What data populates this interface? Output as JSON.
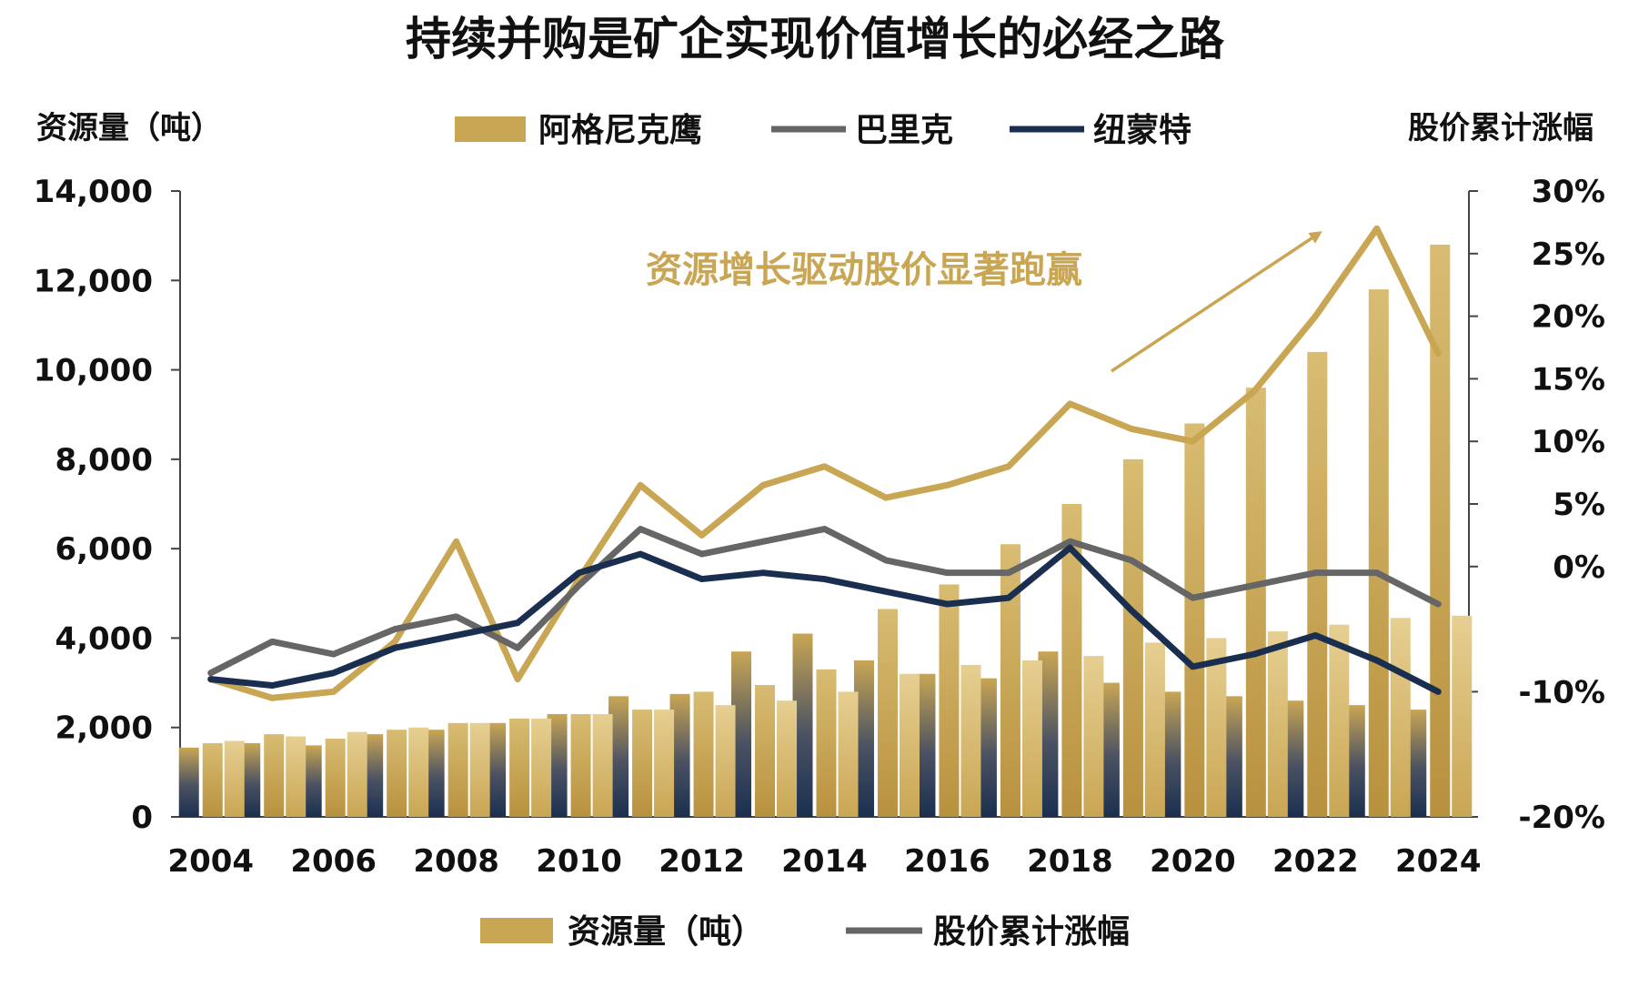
{
  "chart_data": {
    "type": "bar",
    "title": "持续并购是矿企实现价值增长的必经之路",
    "ylabel": "资源量（吨）",
    "y2label": "股价累计涨幅",
    "ylim": [
      0,
      14000
    ],
    "y2lim": [
      -20,
      30
    ],
    "y_ticks": [
      "0",
      "2,000",
      "4,000",
      "6,000",
      "8,000",
      "10,000",
      "12,000",
      "14,000"
    ],
    "y2_ticks": [
      "-20%",
      "-10%",
      "0%",
      "5%",
      "10%",
      "15%",
      "20%",
      "25%",
      "30%"
    ],
    "x": [
      2004,
      2005,
      2006,
      2007,
      2008,
      2009,
      2010,
      2011,
      2012,
      2013,
      2014,
      2015,
      2016,
      2017,
      2018,
      2019,
      2020,
      2021,
      2022,
      2023,
      2024
    ],
    "x_tick_labels": [
      "2004",
      "2006",
      "2008",
      "2010",
      "2012",
      "2014",
      "2016",
      "2018",
      "2020",
      "2022",
      "2024"
    ],
    "bar_series": [
      {
        "role": "dark",
        "values": [
          1550,
          1650,
          1600,
          1850,
          1950,
          2100,
          2300,
          2700,
          2750,
          3700,
          4100,
          3500,
          3200,
          3100,
          3700,
          3000,
          2800,
          2700,
          2600,
          2500,
          2400
        ]
      },
      {
        "role": "gold",
        "values": [
          1650,
          1850,
          1750,
          1950,
          2100,
          2200,
          2300,
          2400,
          2800,
          2950,
          3300,
          4650,
          5200,
          6100,
          7000,
          8000,
          8800,
          9600,
          10400,
          11800,
          12800
        ]
      },
      {
        "role": "gold-side",
        "values": [
          1700,
          1800,
          1900,
          2000,
          2100,
          2200,
          2300,
          2400,
          2500,
          2600,
          2800,
          3200,
          3400,
          3500,
          3600,
          3900,
          4000,
          4150,
          4300,
          4450,
          4500
        ]
      }
    ],
    "line_series": [
      {
        "name": "阿格尼克鹰",
        "color": "#C9A654",
        "values": [
          -9,
          -10.5,
          -10,
          -6,
          2,
          -9,
          -1,
          6.5,
          2.5,
          6.5,
          8,
          5.5,
          6.5,
          8,
          13,
          11,
          10,
          14,
          20,
          27,
          17
        ]
      },
      {
        "name": "巴里克",
        "color": "#666666",
        "values": [
          -8.5,
          -6,
          -7,
          -5,
          -4,
          -6.5,
          -1.5,
          3,
          1,
          2,
          3,
          0.5,
          -0.5,
          -0.5,
          2,
          0.5,
          -2.5,
          -1.5,
          -0.5,
          -0.5,
          -3
        ]
      },
      {
        "name": "纽蒙特",
        "color": "#1A2F50",
        "values": [
          -9,
          -9.5,
          -8.5,
          -6.5,
          -5.5,
          -4.5,
          -0.5,
          1,
          -1,
          -0.5,
          -1,
          -2,
          -3,
          -2.5,
          1.5,
          -3.5,
          -8,
          -7,
          -5.5,
          -7.5,
          -10
        ]
      }
    ],
    "legend_top": [
      {
        "label": "阿格尼克鹰",
        "swatch": "bar",
        "color": "#C9A654"
      },
      {
        "label": "巴里克",
        "swatch": "line",
        "color": "#666666"
      },
      {
        "label": "纽蒙特",
        "swatch": "line",
        "color": "#1A2F50"
      }
    ],
    "legend_bottom": [
      {
        "label": "资源量（吨）",
        "swatch": "bar",
        "color": "#C9A654"
      },
      {
        "label": "股价累计涨幅",
        "swatch": "line",
        "color": "#666666"
      }
    ],
    "annotation": {
      "text": "资源增长驱动股价显著跑赢",
      "color": "#C9A654"
    },
    "colors": {
      "gold": "#C9A654",
      "gold_light": "#E3CC8A",
      "navy": "#1A2F50",
      "gray": "#666666",
      "axis": "#444444"
    },
    "grid": false
  }
}
